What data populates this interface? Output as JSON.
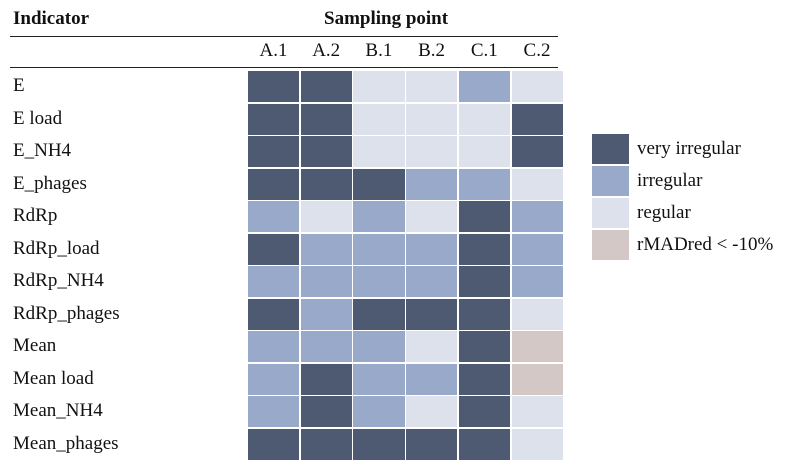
{
  "chart_data": {
    "type": "heatmap",
    "header": {
      "indicator": "Indicator",
      "sampling_point": "Sampling point"
    },
    "columns": [
      "A.1",
      "A.2",
      "B.1",
      "B.2",
      "C.1",
      "C.2"
    ],
    "rows": [
      "E",
      "E load",
      "E_NH4",
      "E_phages",
      "RdRp",
      "RdRp_load",
      "RdRp_NH4",
      "RdRp_phages",
      "Mean",
      "Mean load",
      "Mean_NH4",
      "Mean_phages"
    ],
    "categories": [
      {
        "key": "very_irregular",
        "label": "very irregular",
        "color": "#4e5a72"
      },
      {
        "key": "irregular",
        "label": "irregular",
        "color": "#99a9c9"
      },
      {
        "key": "regular",
        "label": "regular",
        "color": "#dde1ec"
      },
      {
        "key": "rmadred",
        "label": "rMADred < -10%",
        "color": "#d4c8c7"
      }
    ],
    "values": [
      [
        "very_irregular",
        "very_irregular",
        "regular",
        "regular",
        "irregular",
        "regular"
      ],
      [
        "very_irregular",
        "very_irregular",
        "regular",
        "regular",
        "regular",
        "very_irregular"
      ],
      [
        "very_irregular",
        "very_irregular",
        "regular",
        "regular",
        "regular",
        "very_irregular"
      ],
      [
        "very_irregular",
        "very_irregular",
        "very_irregular",
        "irregular",
        "irregular",
        "regular"
      ],
      [
        "irregular",
        "regular",
        "irregular",
        "regular",
        "very_irregular",
        "irregular"
      ],
      [
        "very_irregular",
        "irregular",
        "irregular",
        "irregular",
        "very_irregular",
        "irregular"
      ],
      [
        "irregular",
        "irregular",
        "irregular",
        "irregular",
        "very_irregular",
        "irregular"
      ],
      [
        "very_irregular",
        "irregular",
        "very_irregular",
        "very_irregular",
        "very_irregular",
        "regular"
      ],
      [
        "irregular",
        "irregular",
        "irregular",
        "regular",
        "very_irregular",
        "rmadred"
      ],
      [
        "irregular",
        "very_irregular",
        "irregular",
        "irregular",
        "very_irregular",
        "rmadred"
      ],
      [
        "irregular",
        "very_irregular",
        "irregular",
        "regular",
        "very_irregular",
        "regular"
      ],
      [
        "very_irregular",
        "very_irregular",
        "very_irregular",
        "very_irregular",
        "very_irregular",
        "regular"
      ]
    ]
  }
}
